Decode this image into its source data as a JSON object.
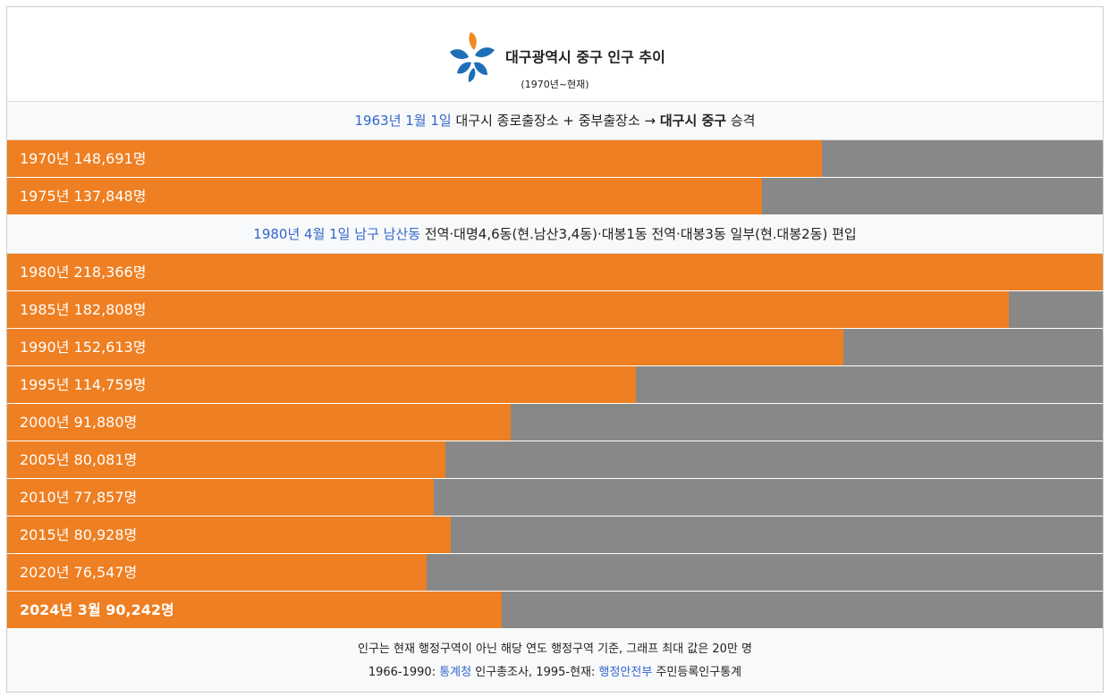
{
  "header": {
    "title": "대구광역시 중구 인구 추이",
    "subtitle": "(1970년~현재)"
  },
  "xlim": [
    0,
    200000
  ],
  "sections": [
    {
      "note": [
        {
          "text": "1963년 1월 1일",
          "link": true
        },
        {
          "text": " 대구시 종로출장소 + 중부출장소 → "
        },
        {
          "text": "대구시 중구",
          "bold": true
        },
        {
          "text": " 승격"
        }
      ],
      "bars": [
        {
          "year": "1970년",
          "label": "148,691명",
          "value": 148691
        },
        {
          "year": "1975년",
          "label": "137,848명",
          "value": 137848
        }
      ]
    },
    {
      "note": [
        {
          "text": "1980년 4월 1일",
          "link": true
        },
        {
          "text": " "
        },
        {
          "text": "남구 남산동",
          "link": true
        },
        {
          "text": " 전역·대명4,6동(현.남산3,4동)·대봉1동 전역·대봉3동 일부(현.대봉2동) 편입"
        }
      ],
      "bars": [
        {
          "year": "1980년",
          "label": "218,366명",
          "value": 218366
        },
        {
          "year": "1985년",
          "label": "182,808명",
          "value": 182808
        },
        {
          "year": "1990년",
          "label": "152,613명",
          "value": 152613
        },
        {
          "year": "1995년",
          "label": "114,759명",
          "value": 114759
        },
        {
          "year": "2000년",
          "label": "91,880명",
          "value": 91880
        },
        {
          "year": "2005년",
          "label": "80,081명",
          "value": 80081
        },
        {
          "year": "2010년",
          "label": "77,857명",
          "value": 77857
        },
        {
          "year": "2015년",
          "label": "80,928명",
          "value": 80928
        },
        {
          "year": "2020년",
          "label": "76,547명",
          "value": 76547
        },
        {
          "year": "2024년 3월",
          "label": "90,242명",
          "value": 90242,
          "bold": true
        }
      ]
    }
  ],
  "footer": [
    [
      {
        "text": "인구는 현재 행정구역이 아닌 해당 연도 행정구역 기준, 그래프 최대 값은 20만 명"
      }
    ],
    [
      {
        "text": "1966-1990: "
      },
      {
        "text": "통계청",
        "link": true
      },
      {
        "text": " 인구총조사, 1995-현재: "
      },
      {
        "text": "행정안전부",
        "link": true
      },
      {
        "text": " 주민등록인구통계"
      }
    ]
  ]
}
